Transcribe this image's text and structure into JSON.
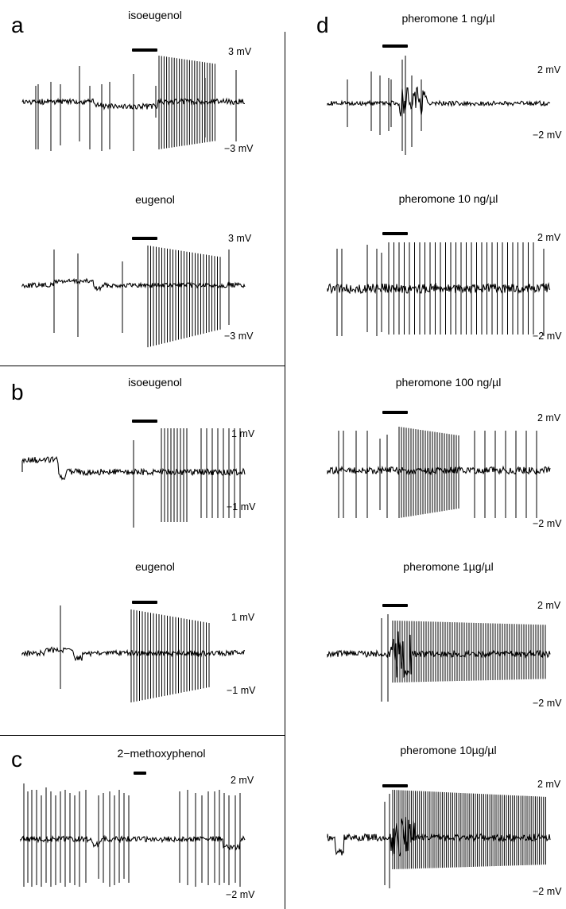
{
  "panels": {
    "a": {
      "letter": "a",
      "traces": [
        {
          "title": "isoeugenol",
          "scale_top": "3 mV",
          "scale_bottom": "−3 mV"
        },
        {
          "title": "eugenol",
          "scale_top": "3 mV",
          "scale_bottom": "−3 mV"
        }
      ]
    },
    "b": {
      "letter": "b",
      "traces": [
        {
          "title": "isoeugenol",
          "scale_top": "1 mV",
          "scale_bottom": "−1 mV"
        },
        {
          "title": "eugenol",
          "scale_top": "1 mV",
          "scale_bottom": "−1 mV"
        }
      ]
    },
    "c": {
      "letter": "c",
      "traces": [
        {
          "title": "2−methoxyphenol",
          "scale_top": "2 mV",
          "scale_bottom": "−2 mV"
        }
      ]
    },
    "d": {
      "letter": "d",
      "traces": [
        {
          "title": "pheromone 1 ng/µl",
          "scale_top": "2 mV",
          "scale_bottom": "−2 mV"
        },
        {
          "title": "pheromone 10 ng/µl",
          "scale_top": "2 mV",
          "scale_bottom": "−2 mV"
        },
        {
          "title": "pheromone 100 ng/µl",
          "scale_top": "2 mV",
          "scale_bottom": "−2 mV"
        },
        {
          "title": "pheromone 1µg/µl",
          "scale_top": "2 mV",
          "scale_bottom": "−2 mV"
        },
        {
          "title": "pheromone 10µg/µl",
          "scale_top": "2 mV",
          "scale_bottom": "−2 mV"
        }
      ]
    }
  },
  "colors": {
    "ink": "#000000",
    "background": "#ffffff"
  }
}
